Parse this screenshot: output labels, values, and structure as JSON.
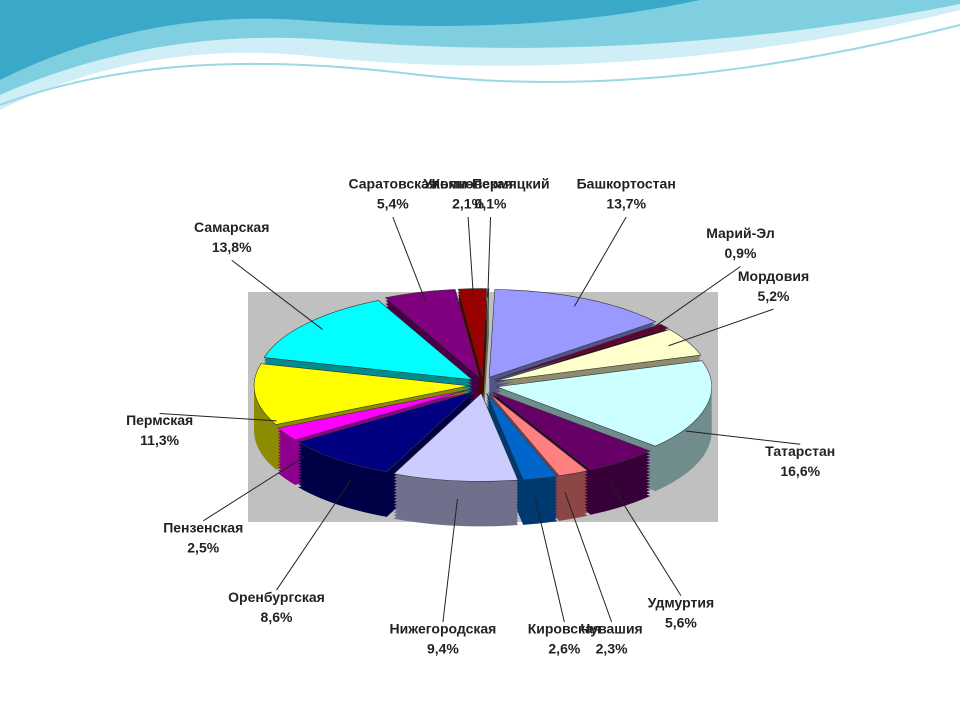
{
  "chart_data": {
    "type": "pie",
    "categories": [
      "Коми-Пермяцкий",
      "Башкортостан",
      "Марий-Эл",
      "Мордовия",
      "Татарстан",
      "Удмуртия",
      "Чувашия",
      "Кировская",
      "Нижегородская",
      "Оренбургская",
      "Пензенская",
      "Пермская",
      "Самарская",
      "Саратовская",
      "Ульяновская"
    ],
    "values": [
      0.1,
      13.7,
      0.9,
      5.2,
      16.6,
      5.6,
      2.3,
      2.6,
      9.4,
      8.6,
      2.5,
      11.3,
      13.8,
      5.4,
      2.1
    ],
    "value_labels": [
      "0,1%",
      "13,7%",
      "0,9%",
      "5,2%",
      "16,6%",
      "5,6%",
      "2,3%",
      "2,6%",
      "9,4%",
      "8,6%",
      "2,5%",
      "11,3%",
      "13,8%",
      "5,4%",
      "2,1%"
    ],
    "colors": [
      "#99cc99",
      "#9999ff",
      "#660033",
      "#ffffcc",
      "#ccffff",
      "#660066",
      "#ff8080",
      "#0066cc",
      "#ccccff",
      "#000080",
      "#ff00ff",
      "#ffff00",
      "#00ffff",
      "#800080",
      "#990000"
    ]
  }
}
